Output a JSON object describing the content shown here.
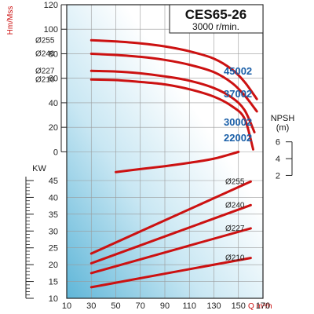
{
  "title": "CES65-26",
  "subtitle": "3000 r/min.",
  "ylabel_head": "Hm/Mss",
  "ylabel_power": "KW",
  "npsh_label": "NPSH",
  "npsh_unit": "(m)",
  "xlabel": "Q m³/h",
  "colors": {
    "curve": "#cc1111",
    "model": "#1a5fa8",
    "grid": "#9a9a9a"
  },
  "chart_data": {
    "type": "line",
    "x_ticks": [
      "10",
      "30",
      "50",
      "70",
      "90",
      "110",
      "130",
      "150",
      "170"
    ],
    "xlim": [
      10,
      170
    ],
    "head": {
      "ylim": [
        -10,
        120
      ],
      "y_ticks": [
        "120",
        "100",
        "80",
        "60",
        "40",
        "20",
        "0"
      ],
      "series": [
        {
          "name": "Ø255",
          "model": "45002",
          "x": [
            30,
            50,
            70,
            90,
            110,
            130,
            145,
            155,
            165
          ],
          "y": [
            91,
            90,
            88.5,
            86,
            82,
            76,
            67,
            57,
            43
          ]
        },
        {
          "name": "Ø240",
          "model": "37002",
          "x": [
            30,
            50,
            70,
            90,
            110,
            130,
            145,
            155,
            165
          ],
          "y": [
            80,
            79,
            77.5,
            75,
            71,
            65,
            56,
            46,
            33
          ]
        },
        {
          "name": "Ø227",
          "model": "30002",
          "x": [
            30,
            50,
            70,
            90,
            110,
            130,
            145,
            155,
            163
          ],
          "y": [
            66,
            65.5,
            64,
            61.5,
            58,
            52,
            44,
            34,
            16
          ]
        },
        {
          "name": "Ø210",
          "model": "22002",
          "x": [
            30,
            50,
            70,
            90,
            110,
            130,
            145,
            155,
            162
          ],
          "y": [
            59,
            58.5,
            57,
            55,
            51,
            45,
            37,
            27,
            2
          ]
        }
      ]
    },
    "npsh": {
      "ylim": [
        1.2,
        7.0
      ],
      "y_ticks": [
        "6",
        "4",
        "2"
      ],
      "series": [
        {
          "name": "NPSH",
          "x": [
            50,
            70,
            90,
            110,
            130,
            150
          ],
          "y": [
            2.4,
            2.75,
            3.1,
            3.5,
            4.0,
            4.8
          ]
        }
      ]
    },
    "power": {
      "ylim": [
        10,
        45
      ],
      "y_ticks": [
        "45",
        "40",
        "35",
        "30",
        "25",
        "20",
        "15",
        "10"
      ],
      "series": [
        {
          "name": "Ø255",
          "x": [
            30,
            160
          ],
          "y": [
            23.3,
            44.7
          ]
        },
        {
          "name": "Ø240",
          "x": [
            30,
            160
          ],
          "y": [
            20.4,
            37.7
          ]
        },
        {
          "name": "Ø227",
          "x": [
            30,
            160
          ],
          "y": [
            17.5,
            30.8
          ]
        },
        {
          "name": "Ø210",
          "x": [
            30,
            160
          ],
          "y": [
            13.3,
            22.0
          ]
        }
      ]
    }
  }
}
